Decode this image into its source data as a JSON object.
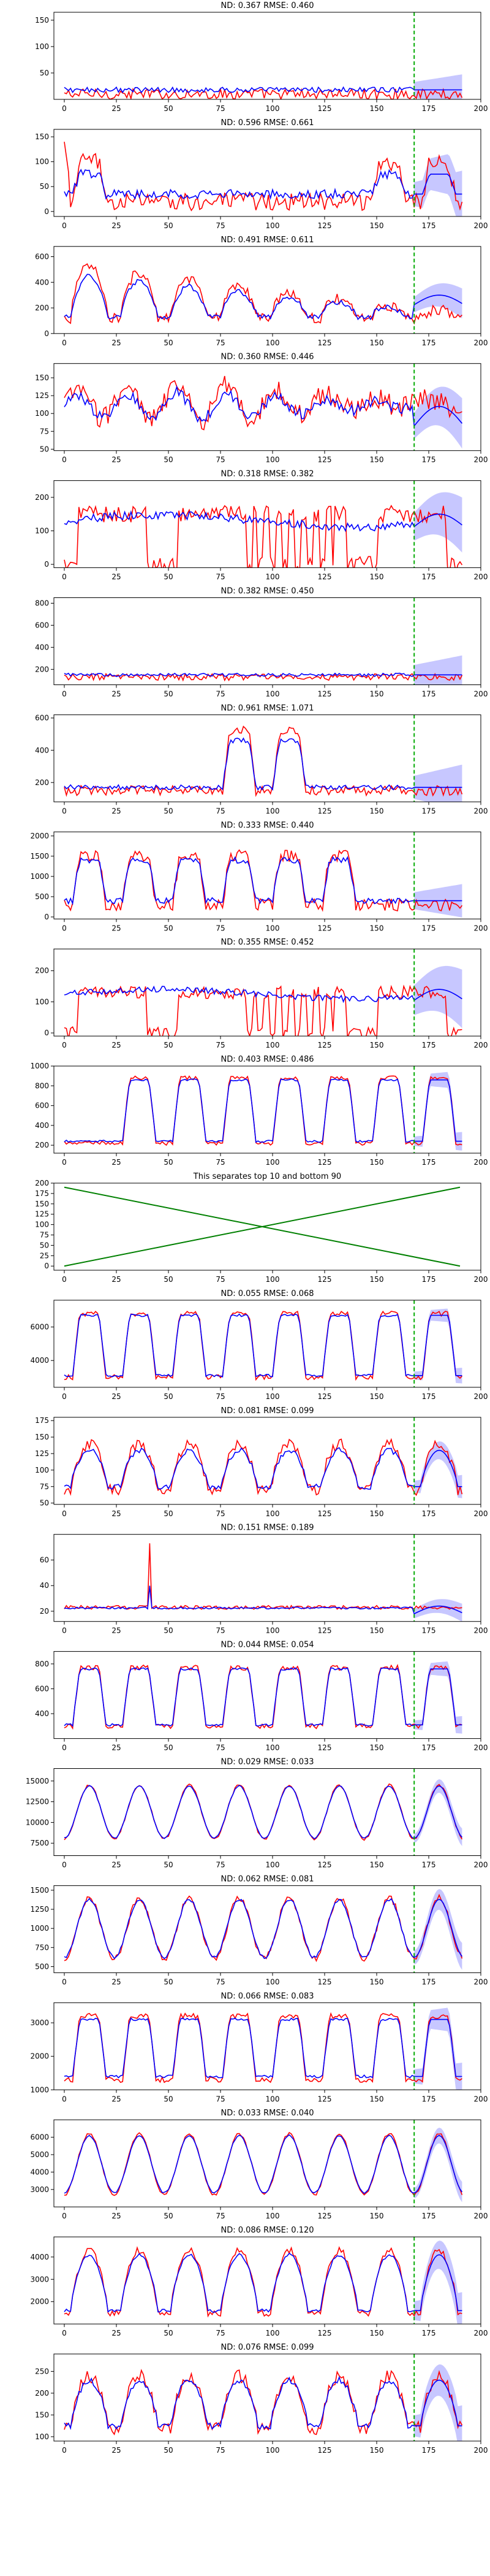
{
  "colors": {
    "actual": "#ff0000",
    "predicted": "#0000ff",
    "band": "#9999ff",
    "split": "#00aa00",
    "separator": "#008000",
    "axis": "#000000"
  },
  "chart_data": [
    {
      "type": "line",
      "title": "ND: 0.367 RMSE: 0.460",
      "xlim": [
        -5,
        200
      ],
      "ylim": [
        0,
        165
      ],
      "xticks": [
        0,
        25,
        50,
        75,
        100,
        125,
        150,
        175,
        200
      ],
      "yticks": [
        50,
        100,
        150
      ],
      "pattern": "periodic",
      "actual_base": 10,
      "actual_peak": 150,
      "pred_base": 18,
      "pred_peak": 115,
      "noise": 10,
      "gap": [
        0,
        1,
        2,
        3,
        4,
        5,
        6,
        7,
        8
      ],
      "forecast_level": 105,
      "forecast_spread": 25
    },
    {
      "type": "line",
      "title": "ND: 0.596 RMSE: 0.661",
      "xlim": [
        -5,
        200
      ],
      "ylim": [
        -10,
        165
      ],
      "xticks": [
        0,
        25,
        50,
        75,
        100,
        125,
        150,
        175,
        200
      ],
      "yticks": [
        0,
        50,
        100,
        150
      ],
      "pattern": "periodic",
      "actual_base": 20,
      "actual_peak": 100,
      "pred_base": 35,
      "pred_peak": 75,
      "noise": 18,
      "gap": [
        1,
        2,
        3,
        4,
        5
      ],
      "start_spike": 140,
      "forecast_level": 55,
      "forecast_spread": 40
    },
    {
      "type": "line",
      "title": "ND: 0.491 RMSE: 0.611",
      "xlim": [
        -5,
        200
      ],
      "ylim": [
        0,
        680
      ],
      "xticks": [
        0,
        25,
        50,
        75,
        100,
        125,
        150,
        175,
        200
      ],
      "yticks": [
        0,
        200,
        400,
        600
      ],
      "pattern": "decay",
      "actual_base": 120,
      "actual_peak": 560,
      "pred_base": 130,
      "pred_peak": 470,
      "noise": 40,
      "forecast_level": 300,
      "forecast_spread": 100
    },
    {
      "type": "line",
      "title": "ND: 0.360 RMSE: 0.446",
      "xlim": [
        -5,
        200
      ],
      "ylim": [
        48,
        170
      ],
      "xticks": [
        0,
        25,
        50,
        75,
        100,
        125,
        150,
        175,
        200
      ],
      "yticks": [
        50,
        75,
        100,
        125,
        150
      ],
      "pattern": "noisy",
      "actual_base": 90,
      "actual_peak": 140,
      "pred_base": 92,
      "pred_peak": 130,
      "noise": 15,
      "forecast_level": 110,
      "forecast_spread": 30
    },
    {
      "type": "line",
      "title": "ND: 0.318 RMSE: 0.382",
      "xlim": [
        -5,
        200
      ],
      "ylim": [
        -10,
        250
      ],
      "xticks": [
        0,
        25,
        50,
        75,
        100,
        125,
        150,
        175,
        200
      ],
      "yticks": [
        0,
        100,
        200
      ],
      "pattern": "onoff",
      "actual_base": 0,
      "actual_peak": 150,
      "pred_base": 100,
      "pred_peak": 160,
      "noise": 25,
      "forecast_level": 150,
      "forecast_spread": 70
    },
    {
      "type": "line",
      "title": "ND: 0.382 RMSE: 0.450",
      "xlim": [
        -5,
        200
      ],
      "ylim": [
        60,
        850
      ],
      "xticks": [
        0,
        25,
        50,
        75,
        100,
        125,
        150,
        175,
        200
      ],
      "yticks": [
        200,
        400,
        600,
        800
      ],
      "pattern": "periodic",
      "actual_base": 130,
      "actual_peak": 460,
      "pred_base": 150,
      "pred_peak": 420,
      "noise": 30,
      "gap": [
        0,
        1,
        2,
        3,
        4,
        5,
        6,
        7,
        8
      ],
      "forecast_level": 550,
      "forecast_spread": 150
    },
    {
      "type": "line",
      "title": "ND: 0.961 RMSE: 1.071",
      "xlim": [
        -5,
        200
      ],
      "ylim": [
        80,
        620
      ],
      "xticks": [
        0,
        25,
        50,
        75,
        100,
        125,
        150,
        175,
        200
      ],
      "yticks": [
        200,
        400,
        600
      ],
      "pattern": "periodic",
      "actual_base": 150,
      "actual_peak": 520,
      "pred_base": 170,
      "pred_peak": 460,
      "noise": 30,
      "gap": [
        0,
        1,
        2,
        5,
        6,
        7,
        8
      ],
      "forecast_level": 300,
      "forecast_spread": 120
    },
    {
      "type": "line",
      "title": "ND: 0.333 RMSE: 0.440",
      "xlim": [
        -5,
        200
      ],
      "ylim": [
        -50,
        2100
      ],
      "xticks": [
        0,
        25,
        50,
        75,
        100,
        125,
        150,
        175,
        200
      ],
      "yticks": [
        0,
        500,
        1000,
        1500,
        2000
      ],
      "pattern": "periodic",
      "actual_base": 300,
      "actual_peak": 1500,
      "pred_base": 400,
      "pred_peak": 1400,
      "noise": 150,
      "gap": [
        6,
        7,
        8
      ],
      "forecast_level": 600,
      "forecast_spread": 350
    },
    {
      "type": "line",
      "title": "ND: 0.355 RMSE: 0.452",
      "xlim": [
        -5,
        200
      ],
      "ylim": [
        -10,
        270
      ],
      "xticks": [
        0,
        25,
        50,
        75,
        100,
        125,
        150,
        175,
        200
      ],
      "yticks": [
        0,
        100,
        200
      ],
      "pattern": "onoff",
      "actual_base": 0,
      "actual_peak": 130,
      "pred_base": 100,
      "pred_peak": 150,
      "noise": 20,
      "forecast_level": 140,
      "forecast_spread": 80
    },
    {
      "type": "line",
      "title": "ND: 0.403 RMSE: 0.486",
      "xlim": [
        -5,
        200
      ],
      "ylim": [
        120,
        1000
      ],
      "xticks": [
        0,
        25,
        50,
        75,
        100,
        125,
        150,
        175,
        200
      ],
      "yticks": [
        200,
        400,
        600,
        800,
        1000
      ],
      "pattern": "periodic",
      "actual_base": 220,
      "actual_peak": 880,
      "pred_base": 240,
      "pred_peak": 860,
      "noise": 20,
      "gap": [
        0
      ],
      "forecast_level": 300,
      "forecast_spread": 80
    },
    {
      "type": "separator",
      "title": "This separates top 10 and bottom 90",
      "xlim": [
        -5,
        200
      ],
      "ylim": [
        -10,
        200
      ],
      "xticks": [
        0,
        25,
        50,
        75,
        100,
        125,
        150,
        175,
        200
      ],
      "yticks": [
        0,
        25,
        50,
        75,
        100,
        125,
        150,
        175,
        200
      ],
      "lines": [
        {
          "x": [
            0,
            190
          ],
          "y": [
            0,
            190
          ]
        },
        {
          "x": [
            0,
            190
          ],
          "y": [
            190,
            0
          ]
        }
      ]
    },
    {
      "type": "line",
      "title": "ND: 0.055 RMSE: 0.068",
      "xlim": [
        -5,
        200
      ],
      "ylim": [
        2400,
        7600
      ],
      "xticks": [
        0,
        25,
        50,
        75,
        100,
        125,
        150,
        175,
        200
      ],
      "yticks": [
        4000,
        6000
      ],
      "pattern": "periodic",
      "actual_base": 3000,
      "actual_peak": 6800,
      "pred_base": 3100,
      "pred_peak": 6700,
      "noise": 150,
      "forecast_level": 6200,
      "forecast_spread": 400
    },
    {
      "type": "line",
      "title": "ND: 0.081 RMSE: 0.099",
      "xlim": [
        -5,
        200
      ],
      "ylim": [
        48,
        180
      ],
      "xticks": [
        0,
        25,
        50,
        75,
        100,
        125,
        150,
        175,
        200
      ],
      "yticks": [
        50,
        75,
        100,
        125,
        150,
        175
      ],
      "pattern": "periodic2",
      "actual_base": 70,
      "actual_peak": 140,
      "pred_base": 75,
      "pred_peak": 130,
      "noise": 8,
      "forecast_level": 110,
      "forecast_spread": 15
    },
    {
      "type": "line",
      "title": "ND: 0.151 RMSE: 0.189",
      "xlim": [
        -5,
        200
      ],
      "ylim": [
        12,
        80
      ],
      "xticks": [
        0,
        25,
        50,
        75,
        100,
        125,
        150,
        175,
        200
      ],
      "yticks": [
        20,
        40,
        60
      ],
      "pattern": "flat",
      "actual_base": 22,
      "actual_peak": 24,
      "pred_base": 22,
      "pred_peak": 23,
      "noise": 1.5,
      "spike_x": 41,
      "spike_y": 73,
      "forecast_level": 24,
      "forecast_spread": 6
    },
    {
      "type": "line",
      "title": "ND: 0.044 RMSE: 0.054",
      "xlim": [
        -5,
        200
      ],
      "ylim": [
        200,
        900
      ],
      "xticks": [
        0,
        25,
        50,
        75,
        100,
        125,
        150,
        175,
        200
      ],
      "yticks": [
        400,
        600,
        800
      ],
      "pattern": "periodic",
      "actual_base": 300,
      "actual_peak": 770,
      "pred_base": 310,
      "pred_peak": 760,
      "noise": 20,
      "forecast_level": 700,
      "forecast_spread": 60
    },
    {
      "type": "line",
      "title": "ND: 0.029 RMSE: 0.033",
      "xlim": [
        -5,
        200
      ],
      "ylim": [
        6000,
        16500
      ],
      "xticks": [
        0,
        25,
        50,
        75,
        100,
        125,
        150,
        175,
        200
      ],
      "yticks": [
        7500,
        10000,
        12500,
        15000
      ],
      "pattern": "smooth",
      "actual_base": 8000,
      "actual_peak": 14500,
      "pred_base": 8100,
      "pred_peak": 14400,
      "noise": 150,
      "forecast_level": 13000,
      "forecast_spread": 900
    },
    {
      "type": "line",
      "title": "ND: 0.062 RMSE: 0.081",
      "xlim": [
        -5,
        200
      ],
      "ylim": [
        420,
        1560
      ],
      "xticks": [
        0,
        25,
        50,
        75,
        100,
        125,
        150,
        175,
        200
      ],
      "yticks": [
        500,
        750,
        1000,
        1250,
        1500
      ],
      "pattern": "smooth",
      "actual_base": 600,
      "actual_peak": 1400,
      "pred_base": 620,
      "pred_peak": 1380,
      "noise": 40,
      "forecast_level": 1100,
      "forecast_spread": 150
    },
    {
      "type": "line",
      "title": "ND: 0.066 RMSE: 0.083",
      "xlim": [
        -5,
        200
      ],
      "ylim": [
        1000,
        3600
      ],
      "xticks": [
        0,
        25,
        50,
        75,
        100,
        125,
        150,
        175,
        200
      ],
      "yticks": [
        1000,
        2000,
        3000
      ],
      "pattern": "periodic",
      "actual_base": 1300,
      "actual_peak": 3200,
      "pred_base": 1400,
      "pred_peak": 3100,
      "noise": 80,
      "forecast_level": 2800,
      "forecast_spread": 350
    },
    {
      "type": "line",
      "title": "ND: 0.033 RMSE: 0.040",
      "xlim": [
        -5,
        200
      ],
      "ylim": [
        2000,
        7000
      ],
      "xticks": [
        0,
        25,
        50,
        75,
        100,
        125,
        150,
        175,
        200
      ],
      "yticks": [
        3000,
        4000,
        5000,
        6000
      ],
      "pattern": "smooth",
      "actual_base": 2700,
      "actual_peak": 6200,
      "pred_base": 2800,
      "pred_peak": 6100,
      "noise": 80,
      "forecast_level": 5200,
      "forecast_spread": 500
    },
    {
      "type": "line",
      "title": "ND: 0.086 RMSE: 0.120",
      "xlim": [
        -5,
        200
      ],
      "ylim": [
        1000,
        4900
      ],
      "xticks": [
        0,
        25,
        50,
        75,
        100,
        125,
        150,
        175,
        200
      ],
      "yticks": [
        2000,
        3000,
        4000
      ],
      "pattern": "periodic2",
      "actual_base": 1500,
      "actual_peak": 4300,
      "pred_base": 1600,
      "pred_peak": 4100,
      "noise": 150,
      "forecast_level": 3400,
      "forecast_spread": 700
    },
    {
      "type": "line",
      "title": "ND: 0.076 RMSE: 0.099",
      "xlim": [
        -5,
        200
      ],
      "ylim": [
        90,
        290
      ],
      "xticks": [
        0,
        25,
        50,
        75,
        100,
        125,
        150,
        175,
        200
      ],
      "yticks": [
        100,
        150,
        200,
        250
      ],
      "pattern": "periodic2",
      "actual_base": 120,
      "actual_peak": 240,
      "pred_base": 125,
      "pred_peak": 230,
      "noise": 15,
      "forecast_level": 200,
      "forecast_spread": 40
    }
  ],
  "split_x": 168,
  "series_length": 192
}
